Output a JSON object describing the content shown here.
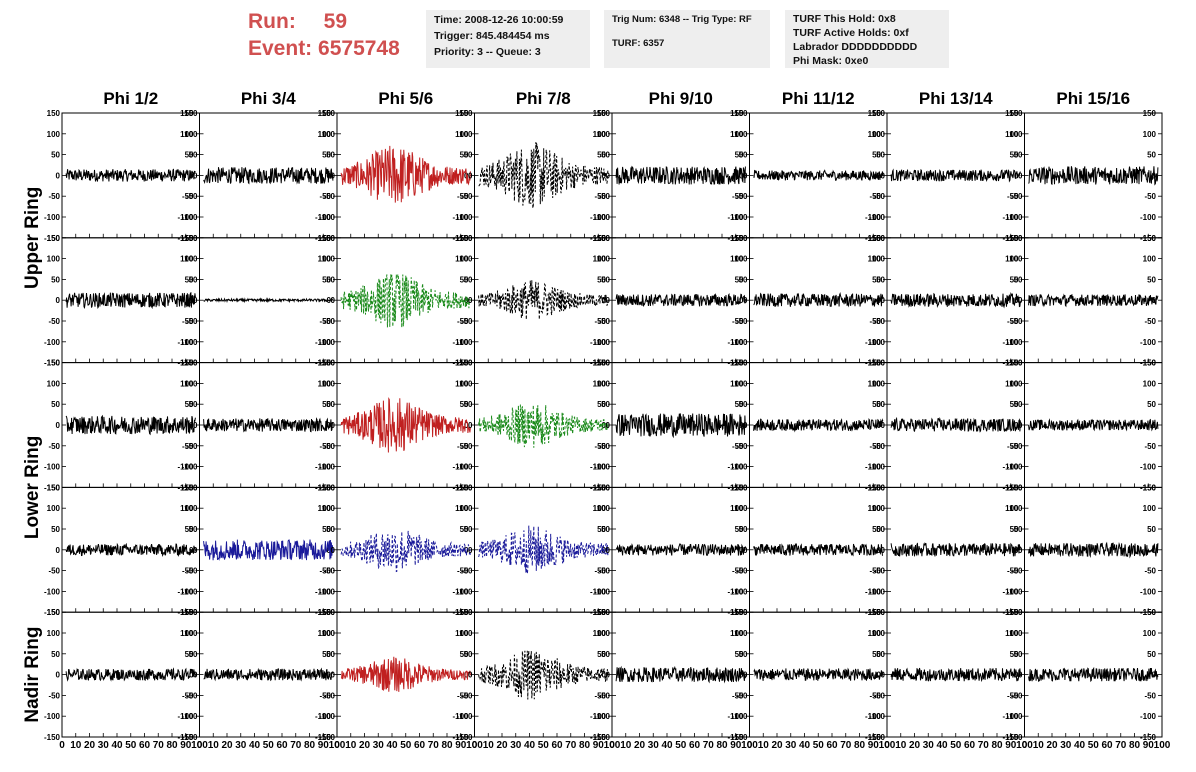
{
  "header": {
    "run_label": "Run:",
    "run_value": "59",
    "event_label": "Event:",
    "event_value": "6575748",
    "time": "Time: 2008-12-26 10:00:59",
    "trigger": "Trigger: 845.484454 ms",
    "priority": "Priority: 3 -- Queue: 3",
    "trig_num": "Trig Num: 6348 -- Trig Type: RF",
    "turf_num": "TURF: 6357",
    "turf_this_hold": "TURF This Hold: 0x8",
    "turf_active_holds": "TURF Active Holds: 0xf",
    "labrador": "Labrador DDDDDDDDDD",
    "phi_mask": "Phi Mask: 0xe0"
  },
  "columns": [
    "Phi 1/2",
    "Phi 3/4",
    "Phi 5/6",
    "Phi 7/8",
    "Phi 9/10",
    "Phi 11/12",
    "Phi 13/14",
    "Phi 15/16"
  ],
  "ring_labels": [
    "Upper Ring",
    "Lower Ring",
    "Nadir Ring"
  ],
  "colors": {
    "normal": "#000000",
    "red": "#c02020",
    "green": "#1a8a1a",
    "blue": "#1a1a9a",
    "run_text": "#d05050",
    "info_bg": "#eeeeee"
  },
  "chart_data": {
    "type": "line",
    "xlim": [
      0,
      100
    ],
    "ylim": [
      -150,
      150
    ],
    "x_ticks": [
      0,
      10,
      20,
      30,
      40,
      50,
      60,
      70,
      80,
      90,
      100
    ],
    "x_tick_labels": [
      "0",
      "10",
      "20",
      "30",
      "40",
      "50",
      "60",
      "70",
      "80",
      "90",
      "100"
    ],
    "y_ticks": [
      -150,
      -100,
      -50,
      0,
      50,
      100,
      150
    ],
    "y_tick_labels": [
      "-150",
      "-100",
      "-50",
      "0",
      "50",
      "100",
      "150"
    ],
    "rows": [
      {
        "panels": [
          {
            "amp": 15,
            "color": "normal",
            "dash": false
          },
          {
            "amp": 20,
            "color": "normal",
            "dash": false
          },
          {
            "amp": 60,
            "color": "red",
            "dash": false
          },
          {
            "amp": 65,
            "color": "normal",
            "dash": true
          },
          {
            "amp": 22,
            "color": "normal",
            "dash": false
          },
          {
            "amp": 12,
            "color": "normal",
            "dash": false
          },
          {
            "amp": 14,
            "color": "normal",
            "dash": false
          },
          {
            "amp": 22,
            "color": "normal",
            "dash": false
          }
        ]
      },
      {
        "panels": [
          {
            "amp": 18,
            "color": "normal",
            "dash": false
          },
          {
            "amp": 3,
            "color": "normal",
            "dash": false
          },
          {
            "amp": 55,
            "color": "green",
            "dash": true
          },
          {
            "amp": 40,
            "color": "normal",
            "dash": true
          },
          {
            "amp": 15,
            "color": "normal",
            "dash": false
          },
          {
            "amp": 16,
            "color": "normal",
            "dash": false
          },
          {
            "amp": 16,
            "color": "normal",
            "dash": false
          },
          {
            "amp": 14,
            "color": "normal",
            "dash": false
          }
        ]
      },
      {
        "panels": [
          {
            "amp": 22,
            "color": "normal",
            "dash": false
          },
          {
            "amp": 16,
            "color": "normal",
            "dash": false
          },
          {
            "amp": 55,
            "color": "red",
            "dash": false
          },
          {
            "amp": 45,
            "color": "green",
            "dash": true
          },
          {
            "amp": 28,
            "color": "normal",
            "dash": false
          },
          {
            "amp": 14,
            "color": "normal",
            "dash": false
          },
          {
            "amp": 16,
            "color": "normal",
            "dash": false
          },
          {
            "amp": 13,
            "color": "normal",
            "dash": false
          }
        ]
      },
      {
        "panels": [
          {
            "amp": 14,
            "color": "normal",
            "dash": false
          },
          {
            "amp": 25,
            "color": "blue",
            "dash": false
          },
          {
            "amp": 45,
            "color": "blue",
            "dash": true
          },
          {
            "amp": 48,
            "color": "blue",
            "dash": true
          },
          {
            "amp": 14,
            "color": "normal",
            "dash": false
          },
          {
            "amp": 14,
            "color": "normal",
            "dash": false
          },
          {
            "amp": 16,
            "color": "normal",
            "dash": false
          },
          {
            "amp": 16,
            "color": "normal",
            "dash": false
          }
        ]
      },
      {
        "panels": [
          {
            "amp": 14,
            "color": "normal",
            "dash": false
          },
          {
            "amp": 14,
            "color": "normal",
            "dash": false
          },
          {
            "amp": 35,
            "color": "red",
            "dash": false
          },
          {
            "amp": 50,
            "color": "normal",
            "dash": true
          },
          {
            "amp": 18,
            "color": "normal",
            "dash": false
          },
          {
            "amp": 15,
            "color": "normal",
            "dash": false
          },
          {
            "amp": 16,
            "color": "normal",
            "dash": false
          },
          {
            "amp": 16,
            "color": "normal",
            "dash": false
          }
        ]
      }
    ]
  }
}
